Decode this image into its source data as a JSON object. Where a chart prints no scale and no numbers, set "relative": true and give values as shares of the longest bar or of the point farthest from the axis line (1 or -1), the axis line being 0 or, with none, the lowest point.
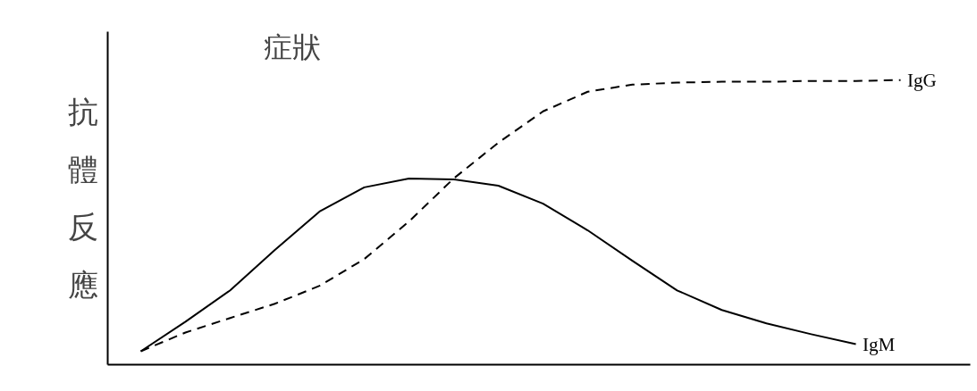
{
  "chart_data": {
    "type": "line",
    "relative": true,
    "ylabel": "抗體反應",
    "annotations": [
      "症狀"
    ],
    "categories": [
      null,
      null,
      null,
      null,
      null,
      null,
      null,
      null,
      null,
      null,
      null,
      null,
      null,
      null,
      null,
      null,
      null,
      null
    ],
    "series": [
      {
        "name": "IgG",
        "color": "#000000",
        "line_style": "dashed",
        "values": [
          0.047,
          0.113,
          0.164,
          0.214,
          0.277,
          0.371,
          0.503,
          0.654,
          0.78,
          0.89,
          0.959,
          0.984,
          0.991,
          0.994,
          0.994,
          0.997,
          0.997,
          1
        ]
      },
      {
        "name": "IgM",
        "color": "#000000",
        "line_style": "solid",
        "values": [
          0.047,
          0.151,
          0.261,
          0.403,
          0.538,
          0.623,
          0.654,
          0.651,
          0.629,
          0.566,
          0.472,
          0.365,
          0.261,
          0.192,
          0.145,
          0.107,
          0.072,
          null
        ]
      }
    ],
    "legend": false,
    "grid": false,
    "marker": "none"
  }
}
